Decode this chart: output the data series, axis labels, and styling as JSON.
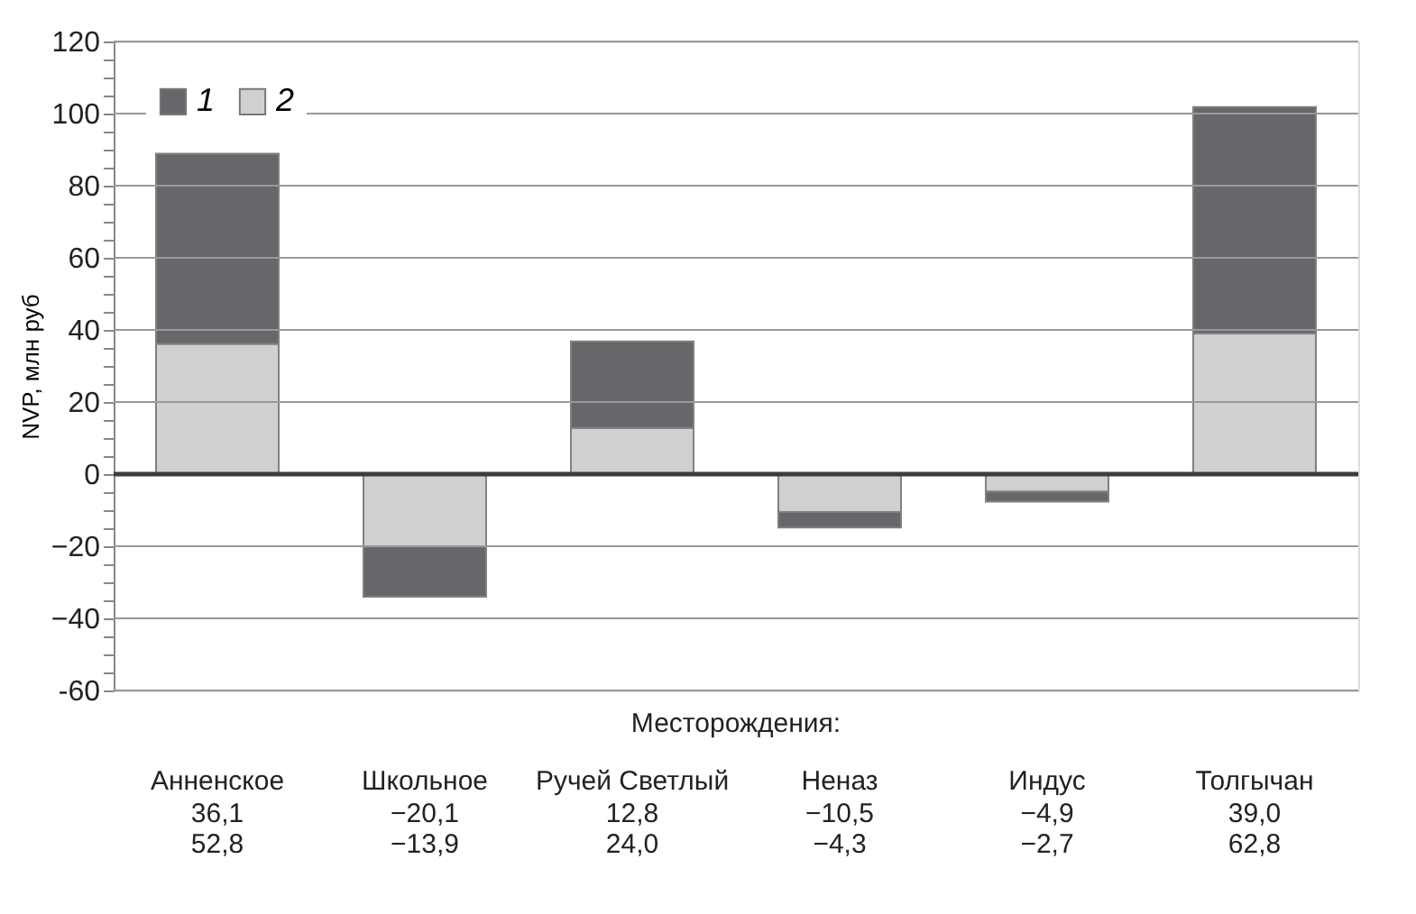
{
  "chart_data": {
    "type": "bar",
    "stacked": true,
    "xlabel": "Месторождения:",
    "ylabel": "NVP, млн руб",
    "categories": [
      "Анненское",
      "Школьное",
      "Ручей Светлый",
      "Неназ",
      "Индус",
      "Толгычан"
    ],
    "series": [
      {
        "name": "2",
        "color": "#d0d0d0",
        "values": [
          36.1,
          -20.1,
          12.8,
          -10.5,
          -4.9,
          39.0
        ],
        "value_labels": [
          "36,1",
          "−20,1",
          "12,8",
          "−10,5",
          "−4,9",
          "39,0"
        ]
      },
      {
        "name": "1",
        "color": "#67676b",
        "values": [
          52.8,
          -13.9,
          24.0,
          -4.3,
          -2.7,
          62.8
        ],
        "value_labels": [
          "52,8",
          "−13,9",
          "24,0",
          "−4,3",
          "−2,7",
          "62,8"
        ]
      }
    ],
    "ylim": [
      -60,
      120
    ],
    "yticks": [
      -60,
      {
        "value": -55,
        "label": null
      },
      {
        "value": -50,
        "label": null
      },
      {
        "value": -45,
        "label": null
      },
      {
        "value": -40,
        "label": "−40"
      },
      {
        "value": -35,
        "label": null
      },
      {
        "value": -30,
        "label": null
      },
      {
        "value": -25,
        "label": null
      },
      {
        "value": -20,
        "label": "−20"
      },
      {
        "value": -15,
        "label": null
      },
      {
        "value": -10,
        "label": null
      },
      {
        "value": -5,
        "label": null
      },
      0,
      {
        "value": 5,
        "label": null
      },
      {
        "value": 10,
        "label": null
      },
      {
        "value": 15,
        "label": null
      },
      20,
      {
        "value": 25,
        "label": null
      },
      {
        "value": 30,
        "label": null
      },
      {
        "value": 35,
        "label": null
      },
      40,
      {
        "value": 45,
        "label": null
      },
      {
        "value": 50,
        "label": null
      },
      {
        "value": 55,
        "label": null
      },
      60,
      {
        "value": 65,
        "label": null
      },
      {
        "value": 70,
        "label": null
      },
      {
        "value": 75,
        "label": null
      },
      80,
      {
        "value": 85,
        "label": null
      },
      {
        "value": 90,
        "label": null
      },
      {
        "value": 95,
        "label": null
      },
      100,
      {
        "value": 105,
        "label": null
      },
      {
        "value": 110,
        "label": null
      },
      {
        "value": 115,
        "label": null
      },
      120
    ],
    "ref_lines": [
      {
        "axis": "y",
        "value": 0,
        "color": "#3c3c3c"
      }
    ],
    "grid": true,
    "legend": "top left"
  }
}
